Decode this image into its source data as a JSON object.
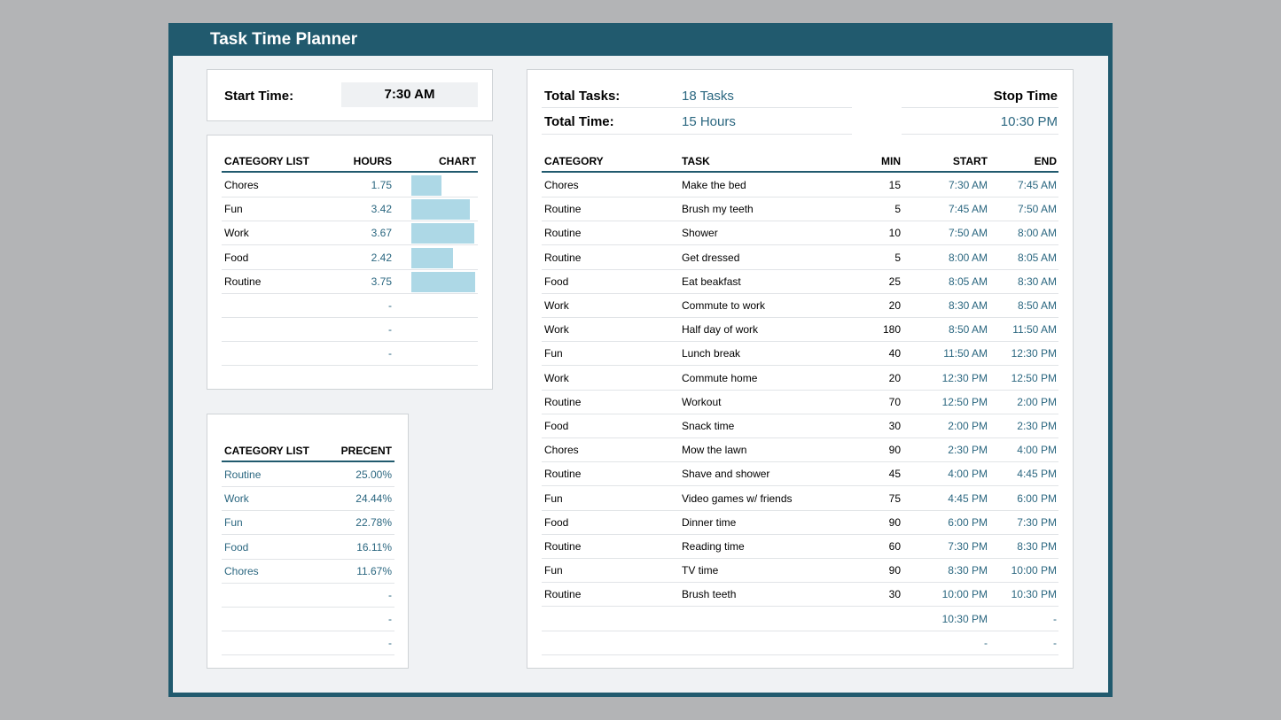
{
  "app": {
    "title": "Task Time Planner"
  },
  "start": {
    "label": "Start Time:",
    "value": "7:30 AM"
  },
  "summary": {
    "total_tasks_label": "Total Tasks:",
    "total_tasks_value": "18 Tasks",
    "total_time_label": "Total Time:",
    "total_time_value": "15 Hours",
    "stop_time_label": "Stop Time",
    "stop_time_value": "10:30 PM"
  },
  "hours_table": {
    "headers": [
      "CATEGORY LIST",
      "HOURS",
      "CHART"
    ],
    "rows": [
      {
        "category": "Chores",
        "hours": "1.75",
        "fraction": 0.4667
      },
      {
        "category": "Fun",
        "hours": "3.42",
        "fraction": 0.912
      },
      {
        "category": "Work",
        "hours": "3.67",
        "fraction": 0.9787
      },
      {
        "category": "Food",
        "hours": "2.42",
        "fraction": 0.6453
      },
      {
        "category": "Routine",
        "hours": "3.75",
        "fraction": 1.0
      },
      {
        "category": "",
        "hours": "-",
        "fraction": 0
      },
      {
        "category": "",
        "hours": "-",
        "fraction": 0
      },
      {
        "category": "",
        "hours": "-",
        "fraction": 0
      }
    ]
  },
  "percent_table": {
    "headers": [
      "CATEGORY LIST",
      "PRECENT"
    ],
    "rows": [
      {
        "category": "Routine",
        "percent": "25.00%"
      },
      {
        "category": "Work",
        "percent": "24.44%"
      },
      {
        "category": "Fun",
        "percent": "22.78%"
      },
      {
        "category": "Food",
        "percent": "16.11%"
      },
      {
        "category": "Chores",
        "percent": "11.67%"
      },
      {
        "category": "",
        "percent": "-"
      },
      {
        "category": "",
        "percent": "-"
      },
      {
        "category": "",
        "percent": "-"
      }
    ]
  },
  "tasks_table": {
    "headers": [
      "CATEGORY",
      "TASK",
      "MIN",
      "START",
      "END"
    ],
    "rows": [
      {
        "category": "Chores",
        "task": "Make the bed",
        "min": "15",
        "start": "7:30 AM",
        "end": "7:45 AM"
      },
      {
        "category": "Routine",
        "task": "Brush my teeth",
        "min": "5",
        "start": "7:45 AM",
        "end": "7:50 AM"
      },
      {
        "category": "Routine",
        "task": "Shower",
        "min": "10",
        "start": "7:50 AM",
        "end": "8:00 AM"
      },
      {
        "category": "Routine",
        "task": "Get dressed",
        "min": "5",
        "start": "8:00 AM",
        "end": "8:05 AM"
      },
      {
        "category": "Food",
        "task": "Eat beakfast",
        "min": "25",
        "start": "8:05 AM",
        "end": "8:30 AM"
      },
      {
        "category": "Work",
        "task": "Commute to work",
        "min": "20",
        "start": "8:30 AM",
        "end": "8:50 AM"
      },
      {
        "category": "Work",
        "task": "Half day of work",
        "min": "180",
        "start": "8:50 AM",
        "end": "11:50 AM"
      },
      {
        "category": "Fun",
        "task": "Lunch break",
        "min": "40",
        "start": "11:50 AM",
        "end": "12:30 PM"
      },
      {
        "category": "Work",
        "task": "Commute home",
        "min": "20",
        "start": "12:30 PM",
        "end": "12:50 PM"
      },
      {
        "category": "Routine",
        "task": "Workout",
        "min": "70",
        "start": "12:50 PM",
        "end": "2:00 PM"
      },
      {
        "category": "Food",
        "task": "Snack time",
        "min": "30",
        "start": "2:00 PM",
        "end": "2:30 PM"
      },
      {
        "category": "Chores",
        "task": "Mow the lawn",
        "min": "90",
        "start": "2:30 PM",
        "end": "4:00 PM"
      },
      {
        "category": "Routine",
        "task": "Shave and shower",
        "min": "45",
        "start": "4:00 PM",
        "end": "4:45 PM"
      },
      {
        "category": "Fun",
        "task": "Video games w/ friends",
        "min": "75",
        "start": "4:45 PM",
        "end": "6:00 PM"
      },
      {
        "category": "Food",
        "task": "Dinner time",
        "min": "90",
        "start": "6:00 PM",
        "end": "7:30 PM"
      },
      {
        "category": "Routine",
        "task": "Reading time",
        "min": "60",
        "start": "7:30 PM",
        "end": "8:30 PM"
      },
      {
        "category": "Fun",
        "task": "TV time",
        "min": "90",
        "start": "8:30 PM",
        "end": "10:00 PM"
      },
      {
        "category": "Routine",
        "task": "Brush teeth",
        "min": "30",
        "start": "10:00 PM",
        "end": "10:30 PM"
      },
      {
        "category": "",
        "task": "",
        "min": "",
        "start": "10:30 PM",
        "end": "-"
      },
      {
        "category": "",
        "task": "",
        "min": "",
        "start": "-",
        "end": "-"
      }
    ]
  },
  "colors": {
    "header_bg": "#215a6e",
    "accent_text": "#2b6780",
    "bar_fill": "#add8e6"
  }
}
